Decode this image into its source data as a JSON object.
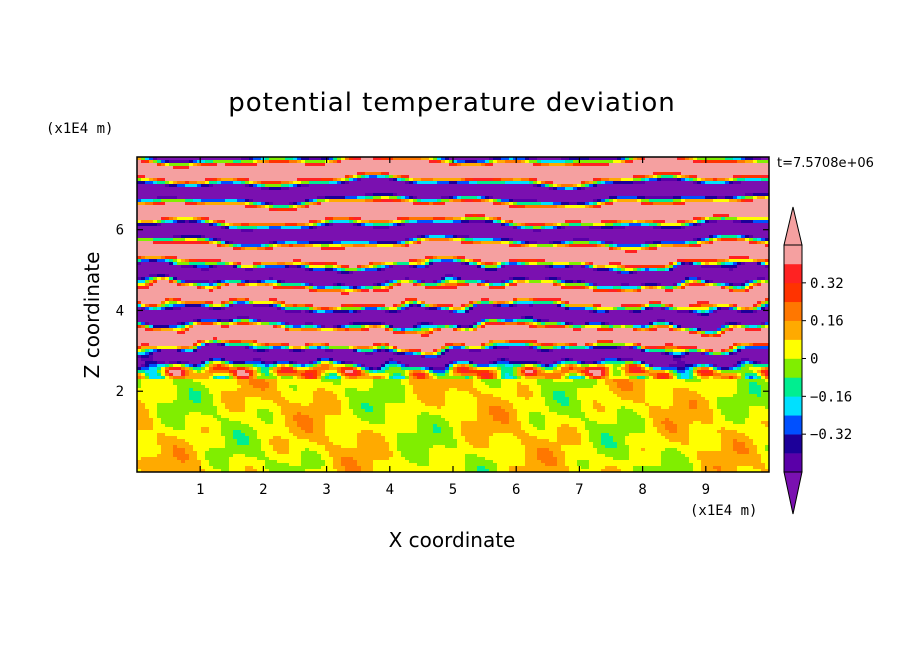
{
  "chart_data": {
    "type": "heatmap",
    "title": "potential temperature deviation",
    "xlabel": "X coordinate",
    "ylabel": "Z coordinate",
    "x_unit": "(x1E4 m)",
    "y_unit": "(x1E4 m)",
    "time_label": "t=7.5708e+06",
    "xlim": [
      0,
      10
    ],
    "ylim": [
      0,
      7.8
    ],
    "x_ticks": [
      1,
      2,
      3,
      4,
      5,
      6,
      7,
      8,
      9
    ],
    "x_tick_labels": [
      "1",
      "2",
      "3",
      "4",
      "5",
      "6",
      "7",
      "8",
      "9"
    ],
    "y_ticks": [
      2,
      4,
      6
    ],
    "y_tick_labels": [
      "2",
      "4",
      "6"
    ],
    "colorbar": {
      "levels": [
        -0.48,
        -0.4,
        -0.32,
        -0.24,
        -0.16,
        -0.08,
        0,
        0.08,
        0.16,
        0.24,
        0.32,
        0.4,
        0.48
      ],
      "colors": [
        "#5a00a8",
        "#1c0099",
        "#0050ff",
        "#00e0ff",
        "#00ee90",
        "#80ee00",
        "#ffff00",
        "#ffaa00",
        "#ff7700",
        "#ff3300",
        "#ff2222",
        "#f5a0a0"
      ],
      "tick_values": [
        0.32,
        0.16,
        0,
        -0.16,
        -0.32
      ],
      "tick_labels": [
        "0.32",
        "0.16",
        "0",
        "−0.16",
        "−0.32"
      ],
      "under_color": "#7a10b0",
      "over_color": "#f5a0a0"
    }
  }
}
